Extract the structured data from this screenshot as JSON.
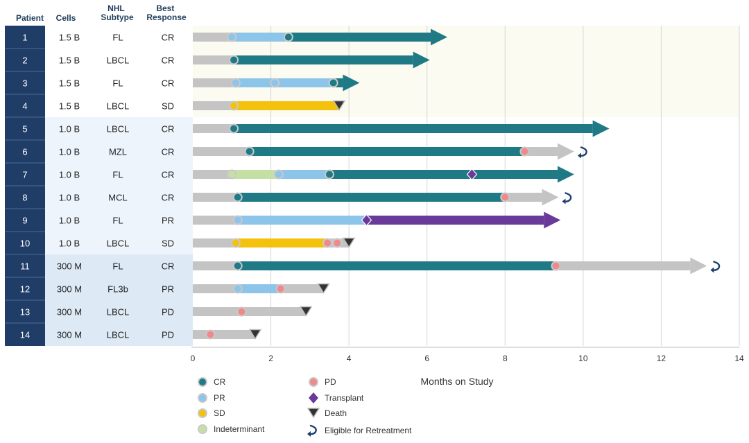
{
  "chart_data": {
    "type": "swimmer",
    "title": "",
    "xlabel": "Months on Study",
    "xlim": [
      0,
      14
    ],
    "xticks": [
      0,
      2,
      4,
      6,
      8,
      10,
      12,
      14
    ],
    "columns": [
      "Patient",
      "Cells",
      "NHL Subtype",
      "Best Response"
    ],
    "colors": {
      "CR": "#1f7a86",
      "PR": "#8cc4ea",
      "SD": "#f4c20d",
      "Indeterminant": "#c5e0a5",
      "PD": "#f08a8a",
      "Transplant": "#6a3a9a",
      "Death": "#333333",
      "Eligible for Retreatment": "#1a3f6e",
      "Off": "#c4c4c4",
      "patient_band": "#1f3d66",
      "group_shade_1": "#eef4fb",
      "group_shade_2": "#dde9f5",
      "plot_band": "#fbfbf1"
    },
    "legend": [
      {
        "key": "CR",
        "label": "CR",
        "shape": "circle"
      },
      {
        "key": "PR",
        "label": "PR",
        "shape": "circle"
      },
      {
        "key": "SD",
        "label": "SD",
        "shape": "circle"
      },
      {
        "key": "Indeterminant",
        "label": "Indeterminant",
        "shape": "circle"
      },
      {
        "key": "PD",
        "label": "PD",
        "shape": "circle"
      },
      {
        "key": "Transplant",
        "label": "Transplant",
        "shape": "diamond"
      },
      {
        "key": "Death",
        "label": "Death",
        "shape": "triangle"
      },
      {
        "key": "Eligible for Retreatment",
        "label": "Eligible for Retreatment",
        "shape": "curl"
      }
    ],
    "patients": [
      {
        "id": "1",
        "cells": "1.5 B",
        "subtype": "FL",
        "best": "CR",
        "end": 6.45,
        "arrow": true,
        "segments": [
          {
            "s": 0,
            "e": 1.0,
            "k": "Off"
          },
          {
            "s": 1.0,
            "e": 2.45,
            "k": "PR"
          },
          {
            "s": 2.45,
            "e": 6.45,
            "k": "CR"
          }
        ],
        "markers": [
          {
            "t": 1.0,
            "k": "PR"
          },
          {
            "t": 2.45,
            "k": "CR"
          }
        ]
      },
      {
        "id": "2",
        "cells": "1.5 B",
        "subtype": "LBCL",
        "best": "CR",
        "end": 6.0,
        "arrow": true,
        "segments": [
          {
            "s": 0,
            "e": 1.05,
            "k": "Off"
          },
          {
            "s": 1.05,
            "e": 6.0,
            "k": "CR"
          }
        ],
        "markers": [
          {
            "t": 1.05,
            "k": "CR"
          }
        ]
      },
      {
        "id": "3",
        "cells": "1.5 B",
        "subtype": "FL",
        "best": "CR",
        "end": 4.2,
        "arrow": true,
        "segments": [
          {
            "s": 0,
            "e": 1.1,
            "k": "Off"
          },
          {
            "s": 1.1,
            "e": 3.6,
            "k": "PR"
          },
          {
            "s": 3.6,
            "e": 4.2,
            "k": "CR"
          }
        ],
        "markers": [
          {
            "t": 1.1,
            "k": "PR"
          },
          {
            "t": 2.1,
            "k": "PR"
          },
          {
            "t": 3.6,
            "k": "CR"
          }
        ]
      },
      {
        "id": "4",
        "cells": "1.5 B",
        "subtype": "LBCL",
        "best": "SD",
        "end": 3.75,
        "arrow": false,
        "segments": [
          {
            "s": 0,
            "e": 1.05,
            "k": "Off"
          },
          {
            "s": 1.05,
            "e": 3.75,
            "k": "SD"
          }
        ],
        "markers": [
          {
            "t": 1.05,
            "k": "SD"
          },
          {
            "t": 3.75,
            "k": "Death"
          }
        ]
      },
      {
        "id": "5",
        "cells": "1.0 B",
        "subtype": "LBCL",
        "best": "CR",
        "end": 10.6,
        "arrow": true,
        "segments": [
          {
            "s": 0,
            "e": 1.05,
            "k": "Off"
          },
          {
            "s": 1.05,
            "e": 10.6,
            "k": "CR"
          }
        ],
        "markers": [
          {
            "t": 1.05,
            "k": "CR"
          }
        ]
      },
      {
        "id": "6",
        "cells": "1.0 B",
        "subtype": "MZL",
        "best": "CR",
        "end": 9.7,
        "arrow": true,
        "segments": [
          {
            "s": 0,
            "e": 1.45,
            "k": "Off"
          },
          {
            "s": 1.45,
            "e": 8.5,
            "k": "CR"
          },
          {
            "s": 8.5,
            "e": 9.7,
            "k": "Off"
          }
        ],
        "markers": [
          {
            "t": 1.45,
            "k": "CR"
          },
          {
            "t": 8.5,
            "k": "PD"
          },
          {
            "t": 9.7,
            "k": "Eligible for Retreatment"
          }
        ]
      },
      {
        "id": "7",
        "cells": "1.0 B",
        "subtype": "FL",
        "best": "CR",
        "end": 9.7,
        "arrow": true,
        "segments": [
          {
            "s": 0,
            "e": 1.0,
            "k": "Off"
          },
          {
            "s": 1.0,
            "e": 2.2,
            "k": "Indeterminant"
          },
          {
            "s": 2.2,
            "e": 3.5,
            "k": "PR"
          },
          {
            "s": 3.5,
            "e": 9.7,
            "k": "CR"
          }
        ],
        "markers": [
          {
            "t": 1.0,
            "k": "Indeterminant"
          },
          {
            "t": 2.2,
            "k": "PR"
          },
          {
            "t": 3.5,
            "k": "CR"
          },
          {
            "t": 7.15,
            "k": "Transplant"
          }
        ]
      },
      {
        "id": "8",
        "cells": "1.0 B",
        "subtype": "MCL",
        "best": "CR",
        "end": 9.3,
        "arrow": true,
        "segments": [
          {
            "s": 0,
            "e": 1.15,
            "k": "Off"
          },
          {
            "s": 1.15,
            "e": 8.0,
            "k": "CR"
          },
          {
            "s": 8.0,
            "e": 9.3,
            "k": "Off"
          }
        ],
        "markers": [
          {
            "t": 1.15,
            "k": "CR"
          },
          {
            "t": 8.0,
            "k": "PD"
          },
          {
            "t": 9.3,
            "k": "Eligible for Retreatment"
          }
        ]
      },
      {
        "id": "9",
        "cells": "1.0 B",
        "subtype": "FL",
        "best": "PR",
        "end": 9.35,
        "arrow": true,
        "segments": [
          {
            "s": 0,
            "e": 1.15,
            "k": "Off"
          },
          {
            "s": 1.15,
            "e": 4.45,
            "k": "PR"
          },
          {
            "s": 4.45,
            "e": 9.35,
            "k": "Transplant"
          }
        ],
        "markers": [
          {
            "t": 1.15,
            "k": "PR"
          },
          {
            "t": 4.45,
            "k": "Transplant"
          }
        ]
      },
      {
        "id": "10",
        "cells": "1.0 B",
        "subtype": "LBCL",
        "best": "SD",
        "end": 4.0,
        "arrow": false,
        "segments": [
          {
            "s": 0,
            "e": 1.1,
            "k": "Off"
          },
          {
            "s": 1.1,
            "e": 3.45,
            "k": "SD"
          },
          {
            "s": 3.45,
            "e": 4.0,
            "k": "Off"
          }
        ],
        "markers": [
          {
            "t": 1.1,
            "k": "SD"
          },
          {
            "t": 3.45,
            "k": "PD"
          },
          {
            "t": 3.7,
            "k": "PD"
          },
          {
            "t": 4.0,
            "k": "Death"
          }
        ]
      },
      {
        "id": "11",
        "cells": "300 M",
        "subtype": "FL",
        "best": "CR",
        "end": 13.1,
        "arrow": true,
        "segments": [
          {
            "s": 0,
            "e": 1.15,
            "k": "Off"
          },
          {
            "s": 1.15,
            "e": 9.3,
            "k": "CR"
          },
          {
            "s": 9.3,
            "e": 13.1,
            "k": "Off"
          }
        ],
        "markers": [
          {
            "t": 1.15,
            "k": "CR"
          },
          {
            "t": 9.3,
            "k": "PD"
          },
          {
            "t": 13.1,
            "k": "Eligible for Retreatment"
          }
        ]
      },
      {
        "id": "12",
        "cells": "300 M",
        "subtype": "FL3b",
        "best": "PR",
        "end": 3.35,
        "arrow": false,
        "segments": [
          {
            "s": 0,
            "e": 1.15,
            "k": "Off"
          },
          {
            "s": 1.15,
            "e": 2.25,
            "k": "PR"
          },
          {
            "s": 2.25,
            "e": 3.35,
            "k": "Off"
          }
        ],
        "markers": [
          {
            "t": 1.15,
            "k": "PR"
          },
          {
            "t": 2.25,
            "k": "PD"
          },
          {
            "t": 3.35,
            "k": "Death"
          }
        ]
      },
      {
        "id": "13",
        "cells": "300 M",
        "subtype": "LBCL",
        "best": "PD",
        "end": 2.9,
        "arrow": false,
        "segments": [
          {
            "s": 0,
            "e": 2.9,
            "k": "Off"
          }
        ],
        "markers": [
          {
            "t": 1.25,
            "k": "PD"
          },
          {
            "t": 2.9,
            "k": "Death"
          }
        ]
      },
      {
        "id": "14",
        "cells": "300 M",
        "subtype": "LBCL",
        "best": "PD",
        "end": 1.6,
        "arrow": false,
        "segments": [
          {
            "s": 0,
            "e": 1.6,
            "k": "Off"
          }
        ],
        "markers": [
          {
            "t": 0.45,
            "k": "PD"
          },
          {
            "t": 1.6,
            "k": "Death"
          }
        ]
      }
    ]
  }
}
